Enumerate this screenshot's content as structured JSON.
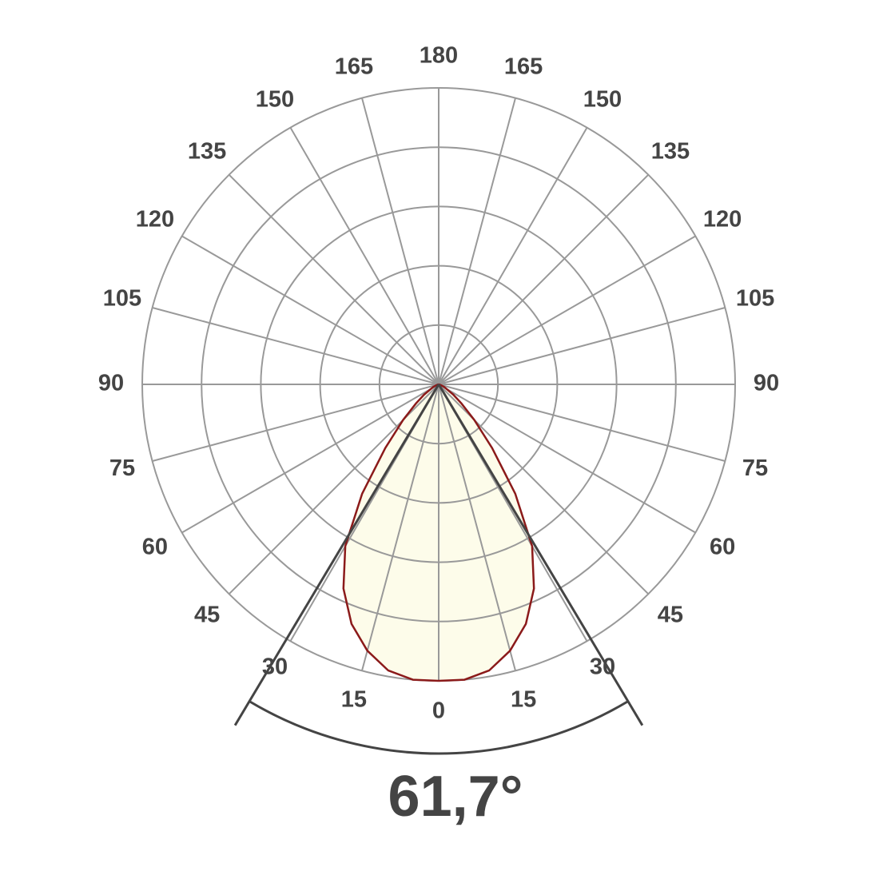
{
  "chart_data": {
    "type": "polar",
    "angle_ticks": [
      0,
      15,
      30,
      45,
      60,
      75,
      90,
      105,
      120,
      135,
      150,
      165,
      180
    ],
    "rlim": [
      0,
      100
    ],
    "rticks": [
      20,
      40,
      60,
      80,
      100
    ],
    "angles": [
      0,
      5,
      10,
      15,
      20,
      25,
      30,
      35,
      40,
      45,
      50,
      55,
      60,
      65,
      70,
      75,
      80,
      85,
      90
    ],
    "values": [
      100,
      100,
      98,
      93,
      86,
      76,
      63,
      45,
      28,
      17,
      10,
      6,
      3,
      2,
      1,
      0.5,
      0,
      0,
      0
    ],
    "color": "#8b1a1a",
    "fill": "#fdfbe6",
    "grid": true,
    "beam_angle": {
      "value": 61.7,
      "label": "61,7°"
    }
  }
}
